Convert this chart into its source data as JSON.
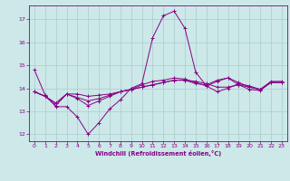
{
  "xlabel": "Windchill (Refroidissement éolien,°C)",
  "bg_color": "#cce8e8",
  "grid_color": "#aacccc",
  "line_color": "#880088",
  "spine_color": "#880088",
  "x_ticks": [
    0,
    1,
    2,
    3,
    4,
    5,
    6,
    7,
    8,
    9,
    10,
    11,
    12,
    13,
    14,
    15,
    16,
    17,
    18,
    19,
    20,
    21,
    22,
    23
  ],
  "y_ticks": [
    12,
    13,
    14,
    15,
    16,
    17
  ],
  "ylim": [
    11.7,
    17.6
  ],
  "xlim": [
    -0.5,
    23.5
  ],
  "curves": [
    [
      14.8,
      13.7,
      13.2,
      13.2,
      12.75,
      12.0,
      12.5,
      13.1,
      13.5,
      14.0,
      14.2,
      16.2,
      17.15,
      17.35,
      16.6,
      14.7,
      14.1,
      13.85,
      14.0,
      14.2,
      14.1,
      13.95,
      14.3,
      14.3
    ],
    [
      13.85,
      13.65,
      13.25,
      13.75,
      13.75,
      13.65,
      13.7,
      13.75,
      13.85,
      13.95,
      14.05,
      14.15,
      14.25,
      14.35,
      14.35,
      14.3,
      14.2,
      14.05,
      14.05,
      14.15,
      14.05,
      13.95,
      14.25,
      14.25
    ],
    [
      13.85,
      13.65,
      13.35,
      13.75,
      13.6,
      13.45,
      13.55,
      13.7,
      13.85,
      13.95,
      14.05,
      14.15,
      14.25,
      14.35,
      14.35,
      14.2,
      14.15,
      14.35,
      14.45,
      14.15,
      13.95,
      13.9,
      14.25,
      14.25
    ],
    [
      13.85,
      13.65,
      13.35,
      13.75,
      13.55,
      13.25,
      13.45,
      13.65,
      13.85,
      13.95,
      14.15,
      14.3,
      14.35,
      14.45,
      14.4,
      14.25,
      14.1,
      14.3,
      14.45,
      14.25,
      14.05,
      13.95,
      14.25,
      14.25
    ]
  ]
}
